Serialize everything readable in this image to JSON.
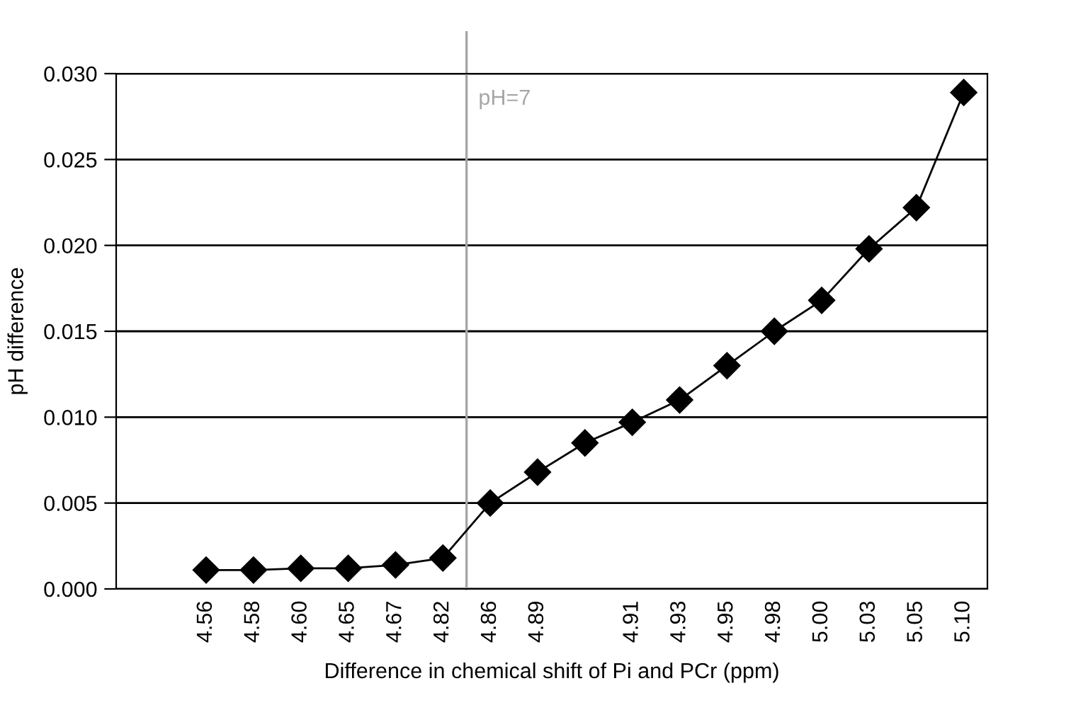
{
  "chart_data": {
    "type": "line",
    "xlabel": "Difference in chemical shift of Pi and PCr (ppm)",
    "ylabel": "pH difference",
    "categories": [
      "4.56",
      "4.58",
      "4.60",
      "4.65",
      "4.67",
      "4.82",
      "4.86",
      "4.89",
      null,
      "4.91",
      "4.93",
      "4.95",
      "4.98",
      "5.00",
      "5.03",
      "5.05",
      "5.10"
    ],
    "series": [
      {
        "color": "#000000",
        "values": [
          0.0011,
          0.0011,
          0.0012,
          0.0012,
          0.0014,
          0.0018,
          0.005,
          0.0068,
          0.0085,
          0.0097,
          0.011,
          0.013,
          0.015,
          0.0168,
          0.0198,
          0.0222,
          0.0289
        ]
      }
    ],
    "ylim": [
      0,
      0.03
    ],
    "yticks": [
      {
        "value": 0,
        "label": "0.000"
      },
      {
        "value": 0.005,
        "label": "0.005"
      },
      {
        "value": 0.01,
        "label": "0.010"
      },
      {
        "value": 0.015,
        "label": "0.015"
      },
      {
        "value": 0.02,
        "label": "0.020"
      },
      {
        "value": 0.025,
        "label": "0.025"
      },
      {
        "value": 0.03,
        "label": "0.030"
      }
    ],
    "grid": "y",
    "marker": "diamond",
    "line_style": "solid",
    "ref_lines": [
      {
        "axis": "x",
        "value": "4.82",
        "label": "pH=7",
        "color": "#a6a6a6"
      }
    ]
  }
}
